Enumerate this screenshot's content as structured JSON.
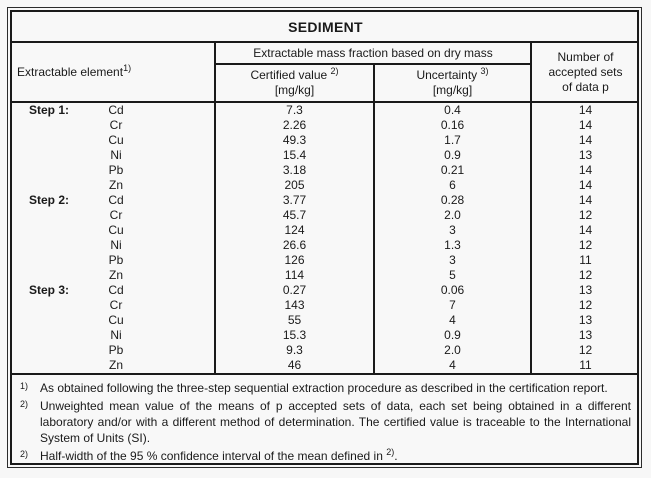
{
  "title": "SEDIMENT",
  "header": {
    "element_label": "Extractable element",
    "element_sup": "1)",
    "group_label": "Extractable mass fraction based on dry mass",
    "certified_label": "Certified value ",
    "certified_sup": "2)",
    "certified_unit": "[mg/kg]",
    "uncertainty_label": "Uncertainty ",
    "uncertainty_sup": "3)",
    "uncertainty_unit": "[mg/kg]",
    "sets_label": "Number of accepted sets of data p"
  },
  "rows": [
    {
      "step": "Step 1:",
      "element": "Cd",
      "certified": "7.3",
      "uncertainty": "0.4",
      "sets": "14"
    },
    {
      "step": "",
      "element": "Cr",
      "certified": "2.26",
      "uncertainty": "0.16",
      "sets": "14"
    },
    {
      "step": "",
      "element": "Cu",
      "certified": "49.3",
      "uncertainty": "1.7",
      "sets": "14"
    },
    {
      "step": "",
      "element": "Ni",
      "certified": "15.4",
      "uncertainty": "0.9",
      "sets": "13"
    },
    {
      "step": "",
      "element": "Pb",
      "certified": "3.18",
      "uncertainty": "0.21",
      "sets": "14"
    },
    {
      "step": "",
      "element": "Zn",
      "certified": "205",
      "uncertainty": "6",
      "sets": "14"
    },
    {
      "step": "Step 2:",
      "element": "Cd",
      "certified": "3.77",
      "uncertainty": "0.28",
      "sets": "14"
    },
    {
      "step": "",
      "element": "Cr",
      "certified": "45.7",
      "uncertainty": "2.0",
      "sets": "12"
    },
    {
      "step": "",
      "element": "Cu",
      "certified": "124",
      "uncertainty": "3",
      "sets": "14"
    },
    {
      "step": "",
      "element": "Ni",
      "certified": "26.6",
      "uncertainty": "1.3",
      "sets": "12"
    },
    {
      "step": "",
      "element": "Pb",
      "certified": "126",
      "uncertainty": "3",
      "sets": "11"
    },
    {
      "step": "",
      "element": "Zn",
      "certified": "114",
      "uncertainty": "5",
      "sets": "12"
    },
    {
      "step": "Step 3:",
      "element": "Cd",
      "certified": "0.27",
      "uncertainty": "0.06",
      "sets": "13"
    },
    {
      "step": "",
      "element": "Cr",
      "certified": "143",
      "uncertainty": "7",
      "sets": "12"
    },
    {
      "step": "",
      "element": "Cu",
      "certified": "55",
      "uncertainty": "4",
      "sets": "13"
    },
    {
      "step": "",
      "element": "Ni",
      "certified": "15.3",
      "uncertainty": "0.9",
      "sets": "13"
    },
    {
      "step": "",
      "element": "Pb",
      "certified": "9.3",
      "uncertainty": "2.0",
      "sets": "12"
    },
    {
      "step": "",
      "element": "Zn",
      "certified": "46",
      "uncertainty": "4",
      "sets": "11"
    }
  ],
  "footnotes": [
    {
      "marker": "1)",
      "text": "As obtained following the three-step sequential extraction procedure as described in the certification report."
    },
    {
      "marker": "2)",
      "text": "Unweighted mean value of the means of p accepted sets of data, each set being obtained in a different laboratory and/or with a different method of determination. The certified value is traceable to the International System of Units (SI)."
    },
    {
      "marker": "2)",
      "text_before_sup": "Half-width of the 95 % confidence interval of the mean defined in ",
      "sup": "2)",
      "text_after_sup": "."
    }
  ],
  "colors": {
    "text": "#1a1a1a",
    "border": "#1a1a1a",
    "background": "#f7f7f7"
  }
}
